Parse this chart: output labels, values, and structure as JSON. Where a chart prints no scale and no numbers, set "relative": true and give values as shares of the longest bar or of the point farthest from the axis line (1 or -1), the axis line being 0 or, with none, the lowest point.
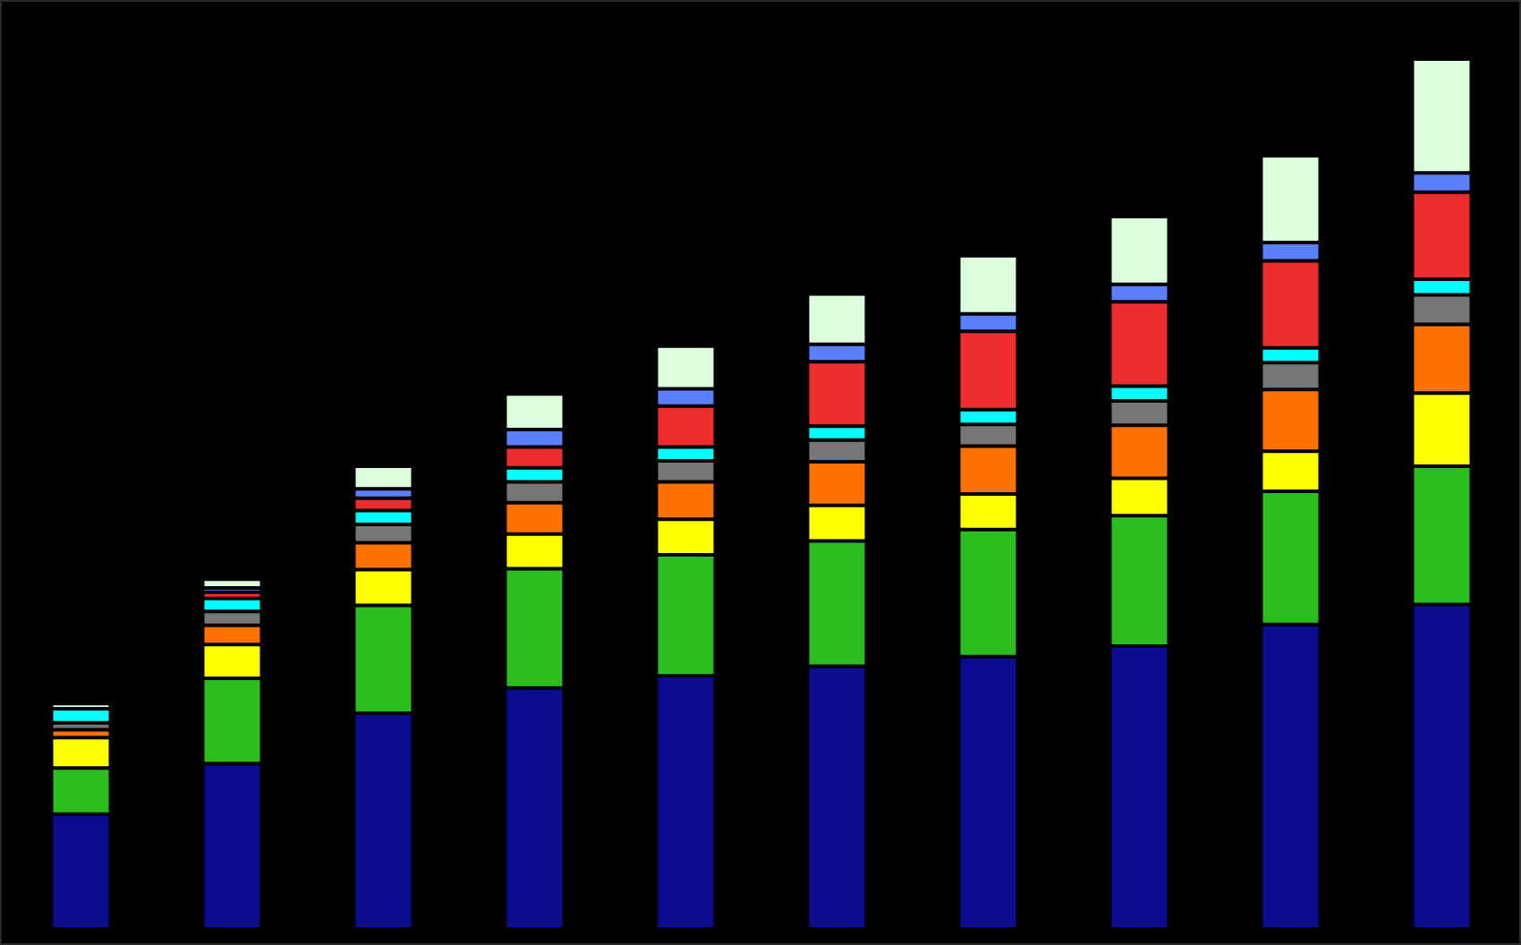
{
  "chart_data": {
    "type": "bar",
    "stacked": true,
    "relative": true,
    "categories": [
      null,
      null,
      null,
      null,
      null,
      null,
      null,
      null,
      null,
      null
    ],
    "series": [
      {
        "color": "#0c0c90",
        "values": [
          0.132,
          0.19,
          0.248,
          0.277,
          0.291,
          0.302,
          0.313,
          0.325,
          0.35,
          0.373
        ]
      },
      {
        "color": "#2abf1f",
        "values": [
          0.053,
          0.098,
          0.124,
          0.137,
          0.139,
          0.144,
          0.146,
          0.15,
          0.153,
          0.159
        ]
      },
      {
        "color": "#ffff00",
        "values": [
          0.035,
          0.039,
          0.041,
          0.04,
          0.041,
          0.041,
          0.041,
          0.043,
          0.046,
          0.084
        ]
      },
      {
        "color": "#ff7100",
        "values": [
          0.009,
          0.022,
          0.031,
          0.036,
          0.043,
          0.05,
          0.055,
          0.061,
          0.071,
          0.079
        ]
      },
      {
        "color": "#767676",
        "values": [
          0.008,
          0.016,
          0.021,
          0.024,
          0.024,
          0.025,
          0.025,
          0.028,
          0.031,
          0.034
        ]
      },
      {
        "color": "#00ffff",
        "values": [
          0.016,
          0.015,
          0.016,
          0.016,
          0.016,
          0.016,
          0.017,
          0.017,
          0.017,
          0.018
        ]
      },
      {
        "color": "#ee2e2e",
        "values": [
          null,
          0.007,
          0.014,
          0.024,
          0.047,
          0.074,
          0.09,
          0.097,
          0.1,
          0.1
        ]
      },
      {
        "color": "#5a7fff",
        "values": [
          null,
          0.005,
          0.011,
          0.02,
          0.02,
          0.02,
          0.02,
          0.02,
          0.021,
          0.022
        ]
      },
      {
        "color": "#dcffdc",
        "values": [
          0.006,
          0.01,
          0.026,
          0.041,
          0.049,
          0.058,
          0.067,
          0.078,
          0.1,
          0.131
        ]
      }
    ]
  }
}
